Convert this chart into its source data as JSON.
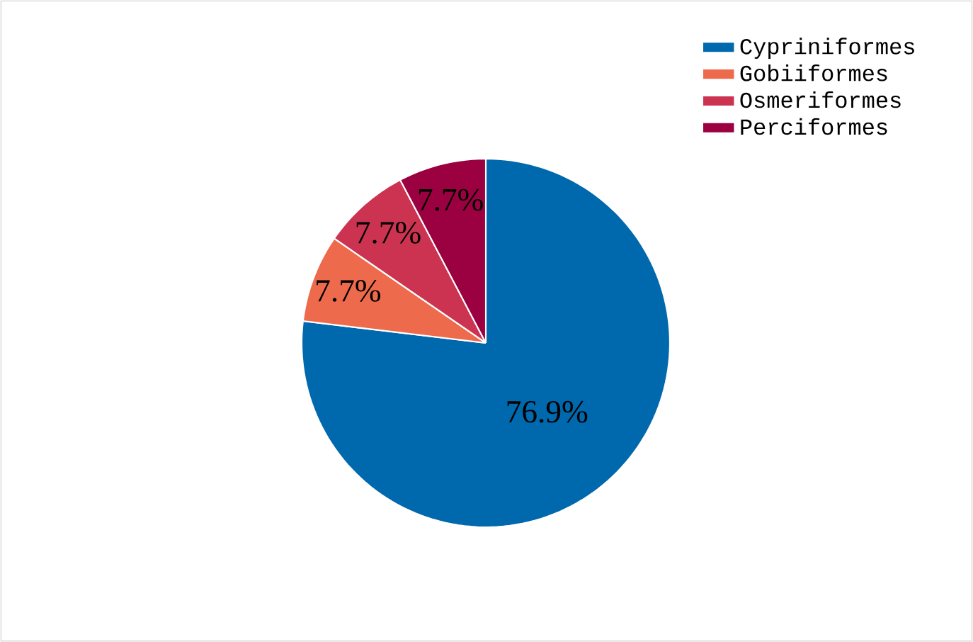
{
  "chart_data": {
    "type": "pie",
    "categories": [
      "Cypriniformes",
      "Gobiiformes",
      "Osmeriformes",
      "Perciformes"
    ],
    "values": [
      76.9,
      7.7,
      7.7,
      7.7
    ],
    "value_labels": [
      "76.9%",
      "7.7%",
      "7.7%",
      "7.7%"
    ],
    "colors": [
      "#0068ad",
      "#ee6a4c",
      "#cc3350",
      "#9b0040"
    ],
    "legend": "top right"
  }
}
